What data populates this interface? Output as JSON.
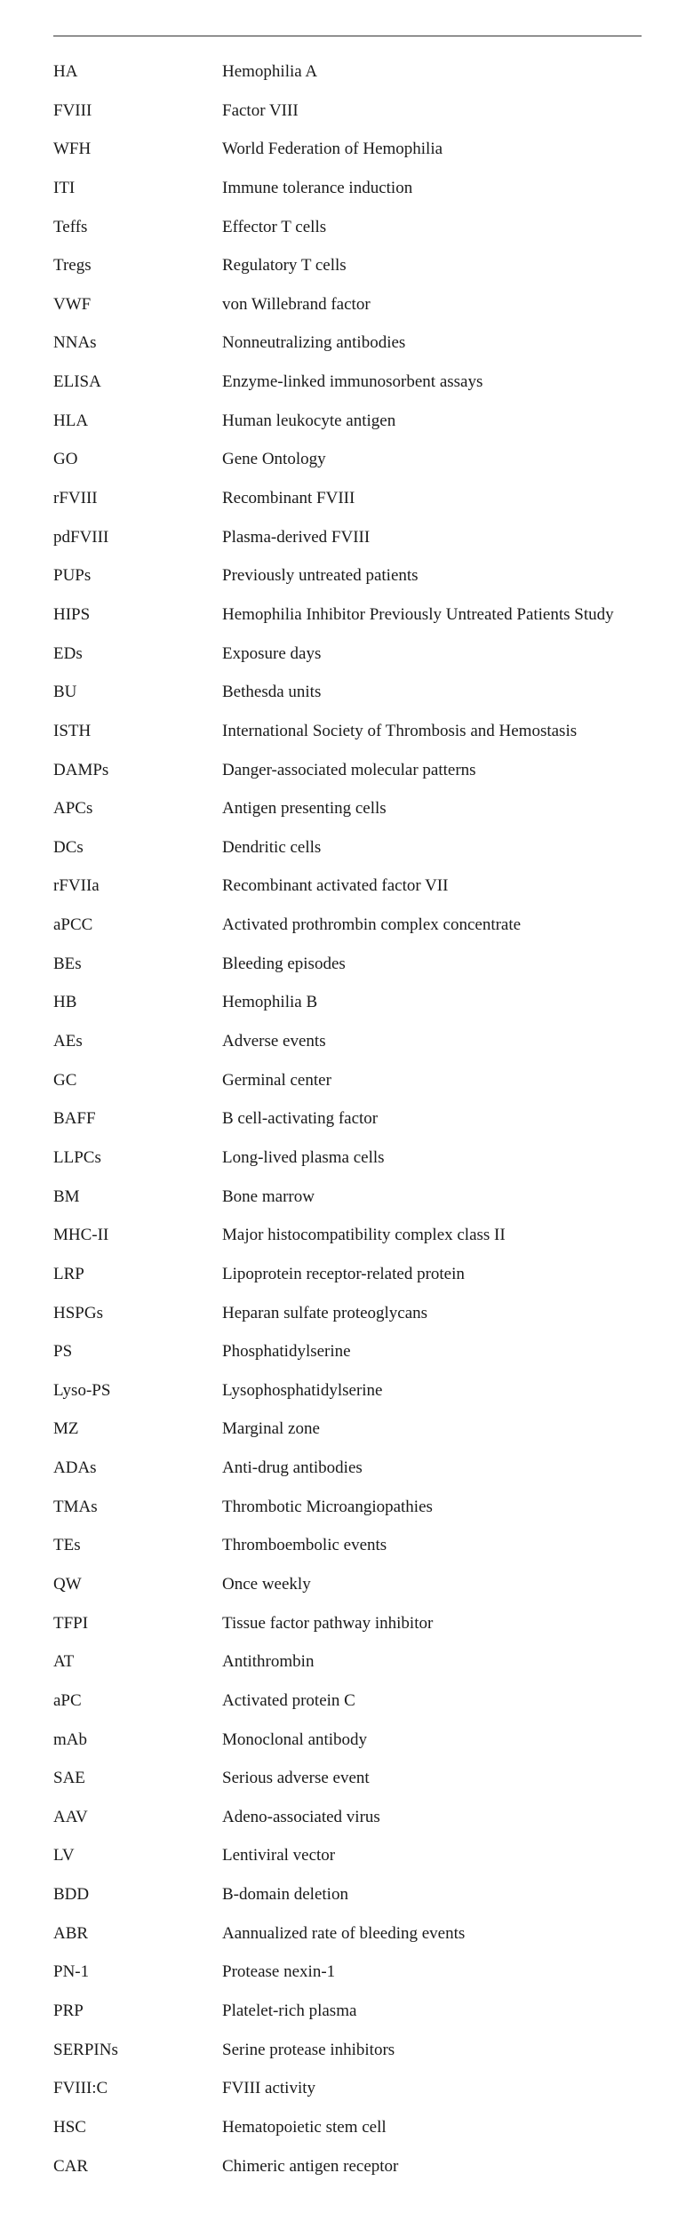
{
  "rows": [
    {
      "abbr": "HA",
      "def": "Hemophilia A"
    },
    {
      "abbr": "FVIII",
      "def": "Factor VIII"
    },
    {
      "abbr": "WFH",
      "def": "World Federation of Hemophilia"
    },
    {
      "abbr": "ITI",
      "def": "Immune tolerance induction"
    },
    {
      "abbr": "Teffs",
      "def": "Effector T cells"
    },
    {
      "abbr": "Tregs",
      "def": "Regulatory T cells"
    },
    {
      "abbr": "VWF",
      "def": "von Willebrand factor"
    },
    {
      "abbr": "NNAs",
      "def": "Nonneutralizing antibodies"
    },
    {
      "abbr": "ELISA",
      "def": "Enzyme-linked immunosorbent assays"
    },
    {
      "abbr": "HLA",
      "def": "Human leukocyte antigen"
    },
    {
      "abbr": "GO",
      "def": "Gene Ontology"
    },
    {
      "abbr": "rFVIII",
      "def": "Recombinant FVIII"
    },
    {
      "abbr": "pdFVIII",
      "def": "Plasma-derived FVIII"
    },
    {
      "abbr": "PUPs",
      "def": "Previously untreated patients"
    },
    {
      "abbr": "HIPS",
      "def": "Hemophilia Inhibitor Previously Untreated Patients Study"
    },
    {
      "abbr": "EDs",
      "def": "Exposure days"
    },
    {
      "abbr": "BU",
      "def": "Bethesda units"
    },
    {
      "abbr": "ISTH",
      "def": "International Society of Thrombosis and Hemostasis"
    },
    {
      "abbr": "DAMPs",
      "def": "Danger-associated molecular patterns"
    },
    {
      "abbr": "APCs",
      "def": "Antigen presenting cells"
    },
    {
      "abbr": "DCs",
      "def": "Dendritic cells"
    },
    {
      "abbr": "rFVIIa",
      "def": "Recombinant activated factor VII"
    },
    {
      "abbr": "aPCC",
      "def": "Activated prothrombin complex concentrate"
    },
    {
      "abbr": "BEs",
      "def": "Bleeding episodes"
    },
    {
      "abbr": "HB",
      "def": "Hemophilia B"
    },
    {
      "abbr": "AEs",
      "def": "Adverse events"
    },
    {
      "abbr": "GC",
      "def": "Germinal center"
    },
    {
      "abbr": "BAFF",
      "def": "B cell-activating factor"
    },
    {
      "abbr": "LLPCs",
      "def": "Long-lived plasma cells"
    },
    {
      "abbr": "BM",
      "def": "Bone marrow"
    },
    {
      "abbr": "MHC-II",
      "def": "Major histocompatibility complex class II"
    },
    {
      "abbr": "LRP",
      "def": "Lipoprotein receptor-related protein"
    },
    {
      "abbr": "HSPGs",
      "def": "Heparan sulfate proteoglycans"
    },
    {
      "abbr": "PS",
      "def": "Phosphatidylserine"
    },
    {
      "abbr": "Lyso-PS",
      "def": "Lysophosphatidylserine"
    },
    {
      "abbr": "MZ",
      "def": "Marginal zone"
    },
    {
      "abbr": "ADAs",
      "def": "Anti-drug antibodies"
    },
    {
      "abbr": "TMAs",
      "def": "Thrombotic Microangiopathies"
    },
    {
      "abbr": "TEs",
      "def": "Thromboembolic events"
    },
    {
      "abbr": "QW",
      "def": "Once weekly"
    },
    {
      "abbr": "TFPI",
      "def": "Tissue factor pathway inhibitor"
    },
    {
      "abbr": "AT",
      "def": "Antithrombin"
    },
    {
      "abbr": "aPC",
      "def": "Activated protein C"
    },
    {
      "abbr": "mAb",
      "def": "Monoclonal antibody"
    },
    {
      "abbr": "SAE",
      "def": "Serious adverse event"
    },
    {
      "abbr": "AAV",
      "def": "Adeno-associated virus"
    },
    {
      "abbr": "LV",
      "def": "Lentiviral vector"
    },
    {
      "abbr": "BDD",
      "def": "B-domain deletion"
    },
    {
      "abbr": "ABR",
      "def": "Aannualized rate of bleeding events"
    },
    {
      "abbr": "PN-1",
      "def": "Protease nexin-1"
    },
    {
      "abbr": "PRP",
      "def": "Platelet-rich plasma"
    },
    {
      "abbr": "SERPINs",
      "def": "Serine protease inhibitors"
    },
    {
      "abbr": "FVIII:C",
      "def": "FVIII activity"
    },
    {
      "abbr": "HSC",
      "def": "Hematopoietic stem cell"
    },
    {
      "abbr": "CAR",
      "def": "Chimeric antigen receptor"
    }
  ]
}
